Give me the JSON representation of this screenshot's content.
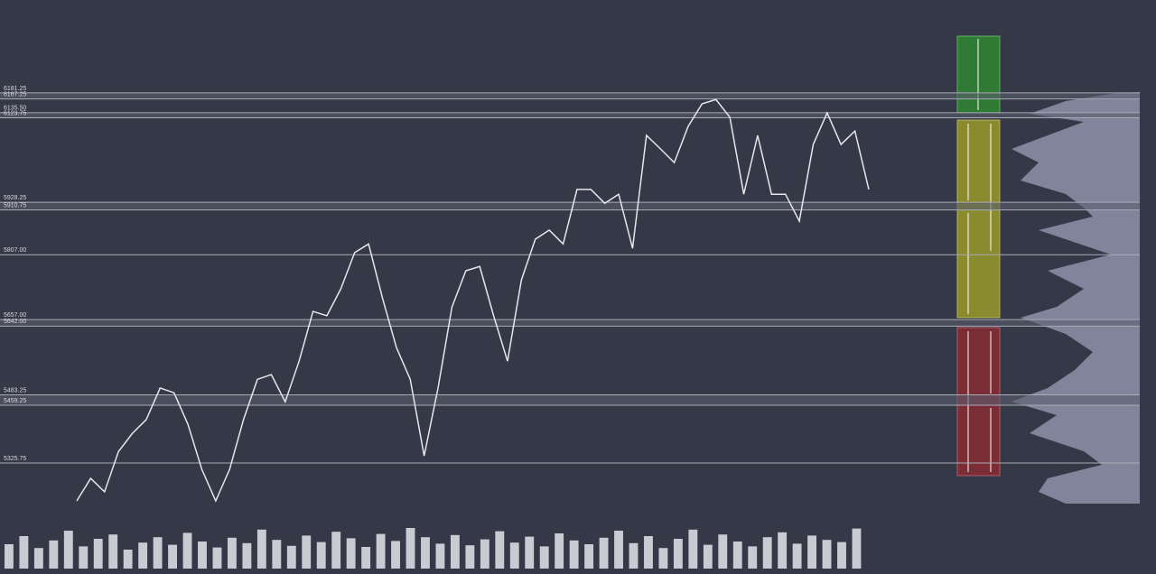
{
  "chart_data": {
    "type": "line",
    "levels": [
      6181.25,
      6167.25,
      6135.5,
      6123.75,
      5928.25,
      5910.75,
      5807.0,
      5657.0,
      5642.0,
      5483.25,
      5459.25,
      5325.75
    ],
    "level_labels": [
      "6181.25",
      "6167.25",
      "6135.50",
      "6123.75",
      "5928.25",
      "5910.75",
      "5807.00",
      "5657.00",
      "5642.00",
      "5483.25",
      "5459.25",
      "5325.75"
    ],
    "values": [
      5238,
      5290,
      5259,
      5352,
      5394,
      5426,
      5499,
      5488,
      5415,
      5311,
      5238,
      5311,
      5426,
      5519,
      5530,
      5467,
      5561,
      5676,
      5666,
      5728,
      5812,
      5832,
      5707,
      5593,
      5519,
      5342,
      5499,
      5686,
      5770,
      5780,
      5666,
      5561,
      5749,
      5843,
      5864,
      5832,
      5958,
      5958,
      5926,
      5947,
      5822,
      6083,
      6052,
      6020,
      6104,
      6156,
      6166,
      6125,
      5947,
      6083,
      5947,
      5947,
      5885,
      6062,
      6135,
      6062,
      6093,
      5958
    ],
    "color": "#e6e7ea",
    "ylim": [
      5069,
      6396
    ],
    "volume": {
      "color": "#c9cad2",
      "ylim": [
        0,
        100
      ],
      "values": [
        45,
        60,
        38,
        52,
        70,
        41,
        55,
        63,
        35,
        48,
        58,
        44,
        66,
        50,
        39,
        57,
        47,
        72,
        53,
        42,
        61,
        49,
        68,
        56,
        40,
        64,
        51,
        75,
        58,
        46,
        62,
        43,
        54,
        69,
        48,
        59,
        41,
        65,
        52,
        45,
        57,
        70,
        47,
        60,
        38,
        55,
        72,
        44,
        63,
        50,
        41,
        58,
        67,
        46,
        61,
        53,
        49,
        74
      ]
    }
  }
}
